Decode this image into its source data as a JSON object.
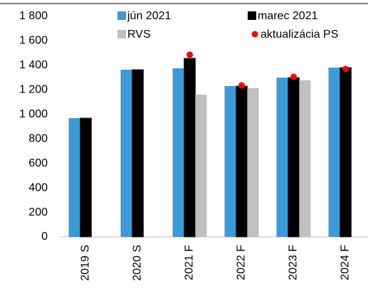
{
  "chart_data": {
    "type": "bar",
    "categories": [
      "2019 S",
      "2020 S",
      "2021 F",
      "2022 F",
      "2023 F",
      "2024 F"
    ],
    "series": [
      {
        "name": "jún 2021",
        "color": "#3d9ad9",
        "values": [
          970,
          1365,
          1376,
          1231,
          1300,
          1382
        ]
      },
      {
        "name": "marec 2021",
        "color": "#000000",
        "values": [
          970,
          1365,
          1458,
          1231,
          1300,
          1382
        ]
      },
      {
        "name": "RVS",
        "color": "#c0c0c0",
        "values": [
          null,
          null,
          1161,
          1214,
          1278,
          null
        ]
      },
      {
        "name": "aktualizácia PS",
        "color": "#ff0000",
        "type": "scatter",
        "values": [
          null,
          null,
          1487,
          1237,
          1307,
          1371
        ]
      }
    ],
    "ylim": [
      0,
      1800
    ],
    "yticks": [
      0,
      200,
      400,
      600,
      800,
      {
        "value": 1000,
        "label": "1 000"
      },
      {
        "value": 1200,
        "label": "1 200"
      },
      {
        "value": 1400,
        "label": "1 400"
      },
      {
        "value": 1600,
        "label": "1 600"
      },
      {
        "value": 1800,
        "label": "1 800"
      }
    ],
    "grid": false
  }
}
